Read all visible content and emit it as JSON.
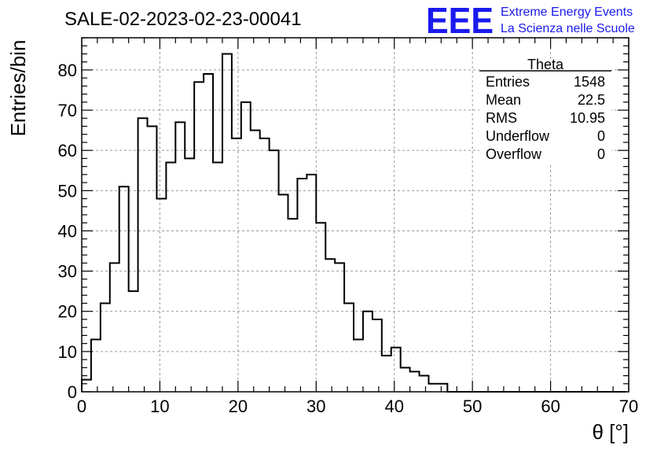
{
  "chart_data": {
    "type": "bar",
    "title": "SALE-02-2023-02-23-00041",
    "xlabel": "θ [°]",
    "ylabel": "Entries/bin",
    "xlim": [
      0,
      70
    ],
    "ylim": [
      0,
      88
    ],
    "x_ticks": [
      0,
      10,
      20,
      30,
      40,
      50,
      60,
      70
    ],
    "y_ticks": [
      0,
      10,
      20,
      30,
      40,
      50,
      60,
      70,
      80
    ],
    "grid": true,
    "bin_width": 1.2,
    "values": [
      3,
      13,
      22,
      32,
      51,
      25,
      68,
      66,
      48,
      57,
      67,
      58,
      77,
      79,
      57,
      84,
      63,
      72,
      65,
      63,
      60,
      49,
      43,
      53,
      54,
      42,
      33,
      32,
      22,
      13,
      20,
      18,
      9,
      11,
      6,
      5,
      4,
      2,
      2,
      0,
      0,
      0,
      0,
      0,
      0,
      0,
      0,
      0,
      0,
      0,
      0,
      0,
      0,
      0,
      0,
      0,
      0,
      0
    ]
  },
  "stats_box": {
    "title": "Theta",
    "rows": [
      {
        "label": "Entries",
        "value": "1548"
      },
      {
        "label": "Mean",
        "value": "22.5"
      },
      {
        "label": "RMS",
        "value": "10.95"
      },
      {
        "label": "Underflow",
        "value": "0"
      },
      {
        "label": "Overflow",
        "value": "0"
      }
    ]
  },
  "logo": {
    "text": "EEE",
    "line1": "Extreme Energy Events",
    "line2": "La Scienza nelle Scuole",
    "color": "#1a1aee"
  },
  "colors": {
    "histogram": "#000000",
    "grid": "#999999",
    "axis": "#000000"
  }
}
